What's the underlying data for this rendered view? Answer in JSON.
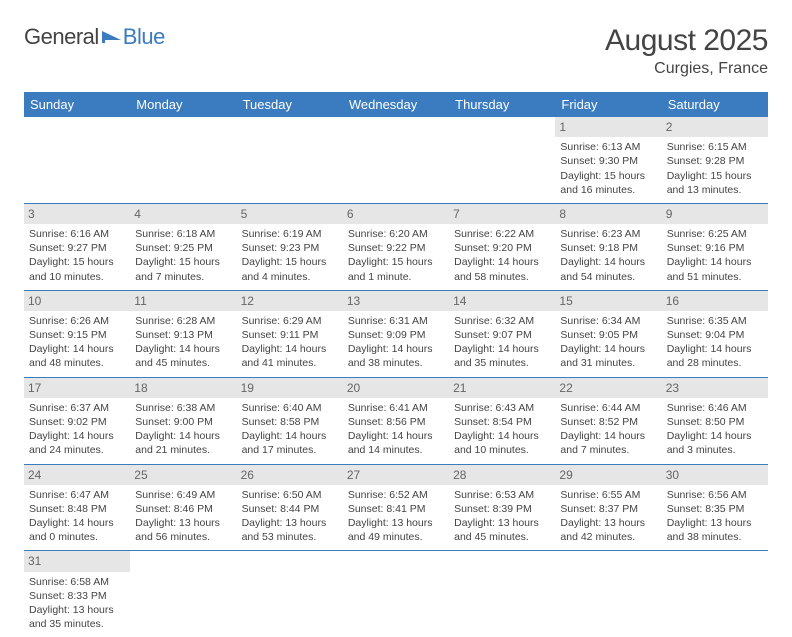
{
  "logo": {
    "text1": "General",
    "text2": "Blue"
  },
  "title": "August 2025",
  "location": "Curgies, France",
  "colors": {
    "header_bg": "#3b7bbf",
    "header_text": "#ffffff",
    "daynum_bg": "#e6e6e6",
    "row_divider": "#3b7bbf",
    "text": "#444444"
  },
  "weekdays": [
    "Sunday",
    "Monday",
    "Tuesday",
    "Wednesday",
    "Thursday",
    "Friday",
    "Saturday"
  ],
  "weeks": [
    [
      {
        "day": "",
        "sunrise": "",
        "sunset": "",
        "daylight": ""
      },
      {
        "day": "",
        "sunrise": "",
        "sunset": "",
        "daylight": ""
      },
      {
        "day": "",
        "sunrise": "",
        "sunset": "",
        "daylight": ""
      },
      {
        "day": "",
        "sunrise": "",
        "sunset": "",
        "daylight": ""
      },
      {
        "day": "",
        "sunrise": "",
        "sunset": "",
        "daylight": ""
      },
      {
        "day": "1",
        "sunrise": "Sunrise: 6:13 AM",
        "sunset": "Sunset: 9:30 PM",
        "daylight": "Daylight: 15 hours and 16 minutes."
      },
      {
        "day": "2",
        "sunrise": "Sunrise: 6:15 AM",
        "sunset": "Sunset: 9:28 PM",
        "daylight": "Daylight: 15 hours and 13 minutes."
      }
    ],
    [
      {
        "day": "3",
        "sunrise": "Sunrise: 6:16 AM",
        "sunset": "Sunset: 9:27 PM",
        "daylight": "Daylight: 15 hours and 10 minutes."
      },
      {
        "day": "4",
        "sunrise": "Sunrise: 6:18 AM",
        "sunset": "Sunset: 9:25 PM",
        "daylight": "Daylight: 15 hours and 7 minutes."
      },
      {
        "day": "5",
        "sunrise": "Sunrise: 6:19 AM",
        "sunset": "Sunset: 9:23 PM",
        "daylight": "Daylight: 15 hours and 4 minutes."
      },
      {
        "day": "6",
        "sunrise": "Sunrise: 6:20 AM",
        "sunset": "Sunset: 9:22 PM",
        "daylight": "Daylight: 15 hours and 1 minute."
      },
      {
        "day": "7",
        "sunrise": "Sunrise: 6:22 AM",
        "sunset": "Sunset: 9:20 PM",
        "daylight": "Daylight: 14 hours and 58 minutes."
      },
      {
        "day": "8",
        "sunrise": "Sunrise: 6:23 AM",
        "sunset": "Sunset: 9:18 PM",
        "daylight": "Daylight: 14 hours and 54 minutes."
      },
      {
        "day": "9",
        "sunrise": "Sunrise: 6:25 AM",
        "sunset": "Sunset: 9:16 PM",
        "daylight": "Daylight: 14 hours and 51 minutes."
      }
    ],
    [
      {
        "day": "10",
        "sunrise": "Sunrise: 6:26 AM",
        "sunset": "Sunset: 9:15 PM",
        "daylight": "Daylight: 14 hours and 48 minutes."
      },
      {
        "day": "11",
        "sunrise": "Sunrise: 6:28 AM",
        "sunset": "Sunset: 9:13 PM",
        "daylight": "Daylight: 14 hours and 45 minutes."
      },
      {
        "day": "12",
        "sunrise": "Sunrise: 6:29 AM",
        "sunset": "Sunset: 9:11 PM",
        "daylight": "Daylight: 14 hours and 41 minutes."
      },
      {
        "day": "13",
        "sunrise": "Sunrise: 6:31 AM",
        "sunset": "Sunset: 9:09 PM",
        "daylight": "Daylight: 14 hours and 38 minutes."
      },
      {
        "day": "14",
        "sunrise": "Sunrise: 6:32 AM",
        "sunset": "Sunset: 9:07 PM",
        "daylight": "Daylight: 14 hours and 35 minutes."
      },
      {
        "day": "15",
        "sunrise": "Sunrise: 6:34 AM",
        "sunset": "Sunset: 9:05 PM",
        "daylight": "Daylight: 14 hours and 31 minutes."
      },
      {
        "day": "16",
        "sunrise": "Sunrise: 6:35 AM",
        "sunset": "Sunset: 9:04 PM",
        "daylight": "Daylight: 14 hours and 28 minutes."
      }
    ],
    [
      {
        "day": "17",
        "sunrise": "Sunrise: 6:37 AM",
        "sunset": "Sunset: 9:02 PM",
        "daylight": "Daylight: 14 hours and 24 minutes."
      },
      {
        "day": "18",
        "sunrise": "Sunrise: 6:38 AM",
        "sunset": "Sunset: 9:00 PM",
        "daylight": "Daylight: 14 hours and 21 minutes."
      },
      {
        "day": "19",
        "sunrise": "Sunrise: 6:40 AM",
        "sunset": "Sunset: 8:58 PM",
        "daylight": "Daylight: 14 hours and 17 minutes."
      },
      {
        "day": "20",
        "sunrise": "Sunrise: 6:41 AM",
        "sunset": "Sunset: 8:56 PM",
        "daylight": "Daylight: 14 hours and 14 minutes."
      },
      {
        "day": "21",
        "sunrise": "Sunrise: 6:43 AM",
        "sunset": "Sunset: 8:54 PM",
        "daylight": "Daylight: 14 hours and 10 minutes."
      },
      {
        "day": "22",
        "sunrise": "Sunrise: 6:44 AM",
        "sunset": "Sunset: 8:52 PM",
        "daylight": "Daylight: 14 hours and 7 minutes."
      },
      {
        "day": "23",
        "sunrise": "Sunrise: 6:46 AM",
        "sunset": "Sunset: 8:50 PM",
        "daylight": "Daylight: 14 hours and 3 minutes."
      }
    ],
    [
      {
        "day": "24",
        "sunrise": "Sunrise: 6:47 AM",
        "sunset": "Sunset: 8:48 PM",
        "daylight": "Daylight: 14 hours and 0 minutes."
      },
      {
        "day": "25",
        "sunrise": "Sunrise: 6:49 AM",
        "sunset": "Sunset: 8:46 PM",
        "daylight": "Daylight: 13 hours and 56 minutes."
      },
      {
        "day": "26",
        "sunrise": "Sunrise: 6:50 AM",
        "sunset": "Sunset: 8:44 PM",
        "daylight": "Daylight: 13 hours and 53 minutes."
      },
      {
        "day": "27",
        "sunrise": "Sunrise: 6:52 AM",
        "sunset": "Sunset: 8:41 PM",
        "daylight": "Daylight: 13 hours and 49 minutes."
      },
      {
        "day": "28",
        "sunrise": "Sunrise: 6:53 AM",
        "sunset": "Sunset: 8:39 PM",
        "daylight": "Daylight: 13 hours and 45 minutes."
      },
      {
        "day": "29",
        "sunrise": "Sunrise: 6:55 AM",
        "sunset": "Sunset: 8:37 PM",
        "daylight": "Daylight: 13 hours and 42 minutes."
      },
      {
        "day": "30",
        "sunrise": "Sunrise: 6:56 AM",
        "sunset": "Sunset: 8:35 PM",
        "daylight": "Daylight: 13 hours and 38 minutes."
      }
    ],
    [
      {
        "day": "31",
        "sunrise": "Sunrise: 6:58 AM",
        "sunset": "Sunset: 8:33 PM",
        "daylight": "Daylight: 13 hours and 35 minutes."
      },
      {
        "day": "",
        "sunrise": "",
        "sunset": "",
        "daylight": ""
      },
      {
        "day": "",
        "sunrise": "",
        "sunset": "",
        "daylight": ""
      },
      {
        "day": "",
        "sunrise": "",
        "sunset": "",
        "daylight": ""
      },
      {
        "day": "",
        "sunrise": "",
        "sunset": "",
        "daylight": ""
      },
      {
        "day": "",
        "sunrise": "",
        "sunset": "",
        "daylight": ""
      },
      {
        "day": "",
        "sunrise": "",
        "sunset": "",
        "daylight": ""
      }
    ]
  ]
}
